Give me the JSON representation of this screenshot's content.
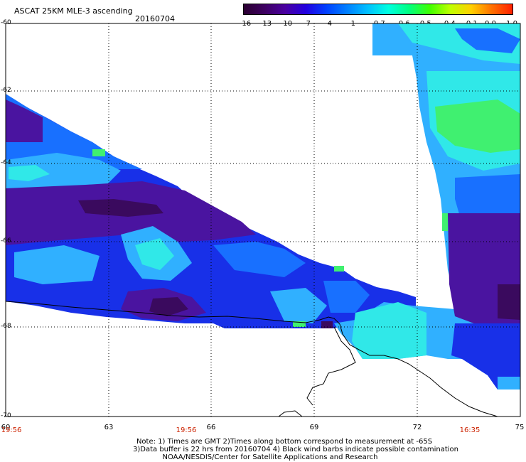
{
  "title": "ASCAT 25KM MLE-3 ascending",
  "date": "20160704",
  "colorbar": {
    "ticks": [
      "-16",
      "-13",
      "-10",
      "-7",
      "-4",
      "-1",
      "-0.7",
      "-0.6",
      "-0.5",
      "-0.4",
      "-0.1",
      "0.0",
      "1.0"
    ],
    "colors": [
      "#2a0030",
      "#3d0060",
      "#4a00a0",
      "#2200e0",
      "#0040ff",
      "#0080ff",
      "#00c0ff",
      "#00ffe0",
      "#00ff80",
      "#40ff00",
      "#c0ff00",
      "#ffd000",
      "#ff7000",
      "#ff2000"
    ]
  },
  "axes": {
    "lat_labels": [
      "-60",
      "-62",
      "-64",
      "-66",
      "-68",
      "-70"
    ],
    "lon_labels": [
      "60",
      "63",
      "66",
      "69",
      "72",
      "75"
    ]
  },
  "time_labels": [
    "19:56",
    "19:56",
    "16:35"
  ],
  "notes": [
    "Note: 1) Times are GMT 2)Times along bottom correspond to measurement at -65S",
    "3)Data buffer is 22 hrs from 20160704 4) Black wind barbs indicate possible contamination",
    "NOAA/NESDIS/Center for Satellite Applications and Research"
  ],
  "map_colors": {
    "deep": "#3a0a5e",
    "purple": "#4a14a0",
    "blue": "#1830e8",
    "mid": "#1870ff",
    "light": "#30b0ff",
    "cyan": "#30e8e8",
    "green": "#40f070",
    "coast": "#000000"
  }
}
